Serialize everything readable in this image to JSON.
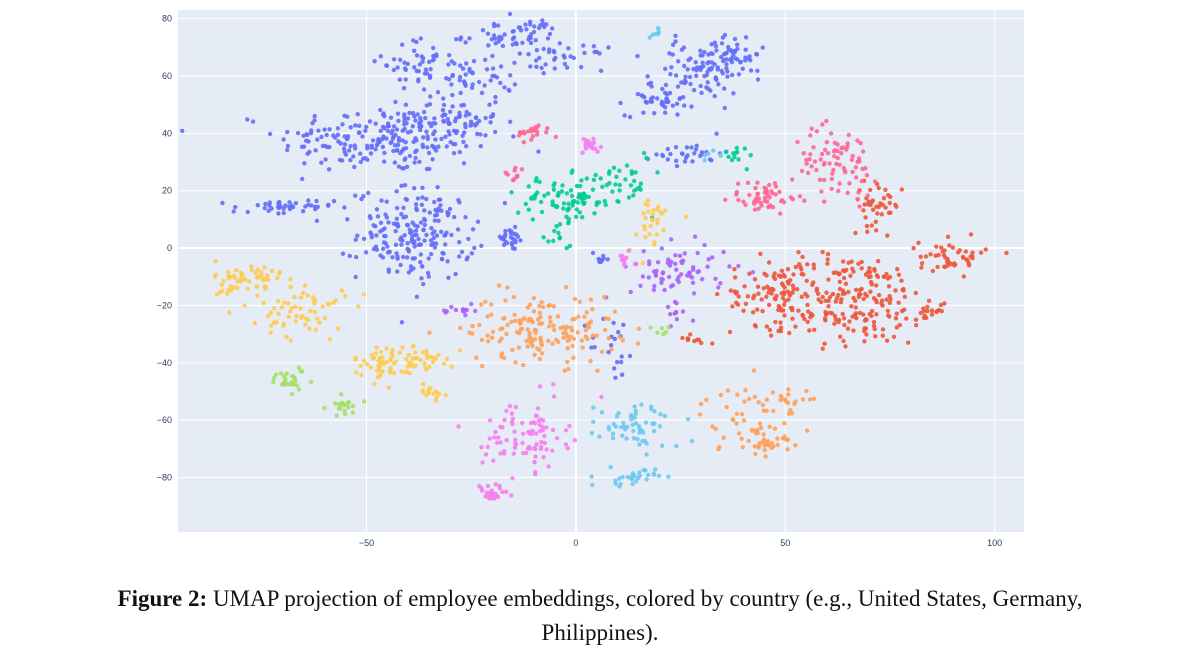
{
  "chart_data": {
    "type": "scatter",
    "xlim": [
      -95,
      107
    ],
    "ylim": [
      -99,
      83
    ],
    "x_ticks": [
      -50,
      0,
      50,
      100
    ],
    "y_ticks": [
      80,
      60,
      40,
      20,
      0,
      -20,
      -40,
      -60,
      -80
    ],
    "x_tick_labels": [
      "−50",
      "0",
      "50",
      "100"
    ],
    "y_tick_labels": [
      "80",
      "60",
      "40",
      "20",
      "0",
      "−20",
      "−40",
      "−60",
      "−80"
    ],
    "grid": true,
    "legend": "none",
    "background": "#e5ecf6",
    "series": [
      {
        "color": "#636efa",
        "clusters": [
          {
            "cx": -45,
            "cy": 38,
            "sx": 13,
            "sy": 6,
            "n": 220
          },
          {
            "cx": -30,
            "cy": 45,
            "sx": 6,
            "sy": 5,
            "n": 60
          },
          {
            "cx": -38,
            "cy": 65,
            "sx": 4,
            "sy": 4,
            "n": 40
          },
          {
            "cx": -25,
            "cy": 60,
            "sx": 6,
            "sy": 4,
            "n": 50
          },
          {
            "cx": -15,
            "cy": 74,
            "sx": 6,
            "sy": 3,
            "n": 60
          },
          {
            "cx": -3,
            "cy": 66,
            "sx": 5,
            "sy": 2,
            "n": 30
          },
          {
            "cx": -38,
            "cy": 5,
            "sx": 7,
            "sy": 8,
            "n": 200
          },
          {
            "cx": -70,
            "cy": 14,
            "sx": 6,
            "sy": 1.5,
            "n": 40
          },
          {
            "cx": -16,
            "cy": 3,
            "sx": 2,
            "sy": 2,
            "n": 25
          },
          {
            "cx": 20,
            "cy": 52,
            "sx": 4,
            "sy": 3,
            "n": 40
          },
          {
            "cx": 30,
            "cy": 62,
            "sx": 6,
            "sy": 5,
            "n": 90
          },
          {
            "cx": 38,
            "cy": 68,
            "sx": 3,
            "sy": 3,
            "n": 35
          },
          {
            "cx": 27,
            "cy": 33,
            "sx": 4,
            "sy": 2,
            "n": 30
          },
          {
            "cx": 9,
            "cy": -35,
            "sx": 3,
            "sy": 6,
            "n": 20
          },
          {
            "cx": 6,
            "cy": -3,
            "sx": 1.5,
            "sy": 1.5,
            "n": 10
          }
        ]
      },
      {
        "color": "#ef553b",
        "clusters": [
          {
            "cx": 65,
            "cy": -18,
            "sx": 10,
            "sy": 8,
            "n": 220
          },
          {
            "cx": 47,
            "cy": -15,
            "sx": 5,
            "sy": 6,
            "n": 70
          },
          {
            "cx": 90,
            "cy": -3,
            "sx": 4,
            "sy": 3,
            "n": 50
          },
          {
            "cx": 72,
            "cy": 15,
            "sx": 3,
            "sy": 4,
            "n": 40
          },
          {
            "cx": 84,
            "cy": -22,
            "sx": 1.5,
            "sy": 1.5,
            "n": 15
          },
          {
            "cx": 28,
            "cy": -32,
            "sx": 2,
            "sy": 1,
            "n": 10
          }
        ]
      },
      {
        "color": "#00cc96",
        "clusters": [
          {
            "cx": -2,
            "cy": 17,
            "sx": 6,
            "sy": 4,
            "n": 90
          },
          {
            "cx": 12,
            "cy": 25,
            "sx": 3,
            "sy": 5,
            "n": 30
          },
          {
            "cx": 38,
            "cy": 32,
            "sx": 3,
            "sy": 2,
            "n": 12
          },
          {
            "cx": -5,
            "cy": 3,
            "sx": 2,
            "sy": 2,
            "n": 10
          }
        ]
      },
      {
        "color": "#ab63fa",
        "clusters": [
          {
            "cx": 25,
            "cy": -8,
            "sx": 6,
            "sy": 5,
            "n": 70
          },
          {
            "cx": -28,
            "cy": -22,
            "sx": 2,
            "sy": 1,
            "n": 15
          },
          {
            "cx": 25,
            "cy": -22,
            "sx": 2,
            "sy": 2,
            "n": 10
          }
        ]
      },
      {
        "color": "#ffa15a",
        "clusters": [
          {
            "cx": -8,
            "cy": -28,
            "sx": 9,
            "sy": 6,
            "n": 160
          },
          {
            "cx": 42,
            "cy": -60,
            "sx": 6,
            "sy": 6,
            "n": 60
          },
          {
            "cx": 45,
            "cy": -68,
            "sx": 2,
            "sy": 2,
            "n": 20
          },
          {
            "cx": 52,
            "cy": -52,
            "sx": 3,
            "sy": 2,
            "n": 12
          }
        ]
      },
      {
        "color": "#fecb52",
        "clusters": [
          {
            "cx": -78,
            "cy": -12,
            "sx": 4,
            "sy": 4,
            "n": 60
          },
          {
            "cx": -65,
            "cy": -22,
            "sx": 5,
            "sy": 5,
            "n": 60
          },
          {
            "cx": -45,
            "cy": -40,
            "sx": 4,
            "sy": 3,
            "n": 60
          },
          {
            "cx": -35,
            "cy": -38,
            "sx": 3,
            "sy": 2,
            "n": 25
          },
          {
            "cx": -35,
            "cy": -50,
            "sx": 2,
            "sy": 2,
            "n": 15
          },
          {
            "cx": 18,
            "cy": 8,
            "sx": 3,
            "sy": 5,
            "n": 30
          }
        ]
      },
      {
        "color": "#ff6692",
        "clusters": [
          {
            "cx": 62,
            "cy": 30,
            "sx": 5,
            "sy": 6,
            "n": 80
          },
          {
            "cx": 45,
            "cy": 18,
            "sx": 4,
            "sy": 3,
            "n": 50
          },
          {
            "cx": -10,
            "cy": 40,
            "sx": 2,
            "sy": 1.5,
            "n": 20
          },
          {
            "cx": -15,
            "cy": 25,
            "sx": 2,
            "sy": 2,
            "n": 10
          }
        ]
      },
      {
        "color": "#f580f0",
        "clusters": [
          {
            "cx": -12,
            "cy": -65,
            "sx": 5,
            "sy": 6,
            "n": 90
          },
          {
            "cx": -20,
            "cy": -86,
            "sx": 2,
            "sy": 2,
            "n": 25
          },
          {
            "cx": 3,
            "cy": 36,
            "sx": 2,
            "sy": 1.5,
            "n": 20
          },
          {
            "cx": 12,
            "cy": -5,
            "sx": 2,
            "sy": 2,
            "n": 10
          }
        ]
      },
      {
        "color": "#6fc9ee",
        "clusters": [
          {
            "cx": 15,
            "cy": -62,
            "sx": 5,
            "sy": 4,
            "n": 60
          },
          {
            "cx": 13,
            "cy": -80,
            "sx": 3,
            "sy": 1.5,
            "n": 30
          },
          {
            "cx": 19,
            "cy": 75,
            "sx": 1,
            "sy": 1,
            "n": 8
          },
          {
            "cx": 32,
            "cy": 32,
            "sx": 1.5,
            "sy": 1,
            "n": 6
          }
        ]
      },
      {
        "color": "#a4e068",
        "clusters": [
          {
            "cx": -68,
            "cy": -46,
            "sx": 3,
            "sy": 2,
            "n": 30
          },
          {
            "cx": -55,
            "cy": -55,
            "sx": 2,
            "sy": 2,
            "n": 20
          },
          {
            "cx": 20,
            "cy": -28,
            "sx": 1.5,
            "sy": 1,
            "n": 6
          }
        ]
      }
    ]
  },
  "caption": {
    "lead": "Figure 2:",
    "text": " UMAP projection of employee embeddings, colored by country (e.g., United States, Germany,",
    "line2": "Philippines)."
  }
}
